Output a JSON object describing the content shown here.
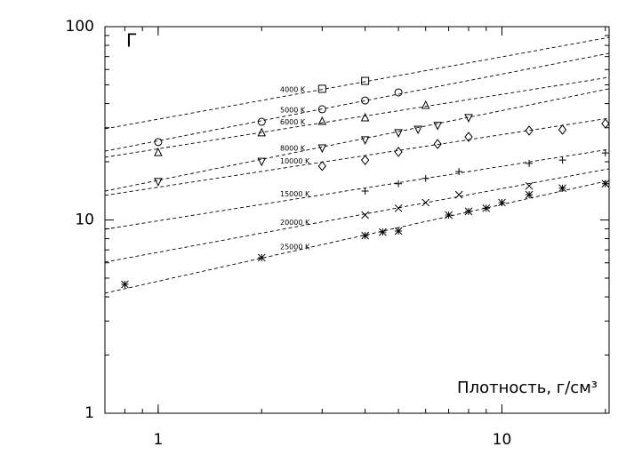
{
  "chart_data": {
    "type": "scatter",
    "x_label": "Плотность, г/см³",
    "y_label": "Г",
    "xlim": [
      0.7,
      20.5
    ],
    "ylim": [
      1,
      100
    ],
    "xticks": [
      1,
      10
    ],
    "yticks": [
      1,
      10,
      100
    ],
    "log_x": true,
    "log_y": true,
    "series": [
      {
        "name": "4000 K",
        "marker": "square",
        "color": "#000000",
        "x": [
          3,
          4
        ],
        "values": [
          47.7,
          52.4
        ],
        "fit": [
          29.6,
          88
        ]
      },
      {
        "name": "5000 K",
        "marker": "circle",
        "color": "#000000",
        "x": [
          1,
          2,
          3,
          4,
          5
        ],
        "values": [
          25.3,
          32.2,
          37.4,
          41.5,
          45.7
        ],
        "fit": [
          22.7,
          72.8
        ]
      },
      {
        "name": "6000 K",
        "marker": "triangle",
        "color": "#000000",
        "x": [
          1,
          2,
          3,
          4,
          6
        ],
        "values": [
          22.2,
          28.1,
          32.2,
          33.6,
          39
        ],
        "fit": [
          21.1,
          54.7
        ]
      },
      {
        "name": "8000 K",
        "marker": "nabla",
        "color": "#000000",
        "x": [
          1,
          2,
          3,
          4,
          5,
          5.7,
          6.5,
          8
        ],
        "values": [
          15.9,
          20.2,
          23.7,
          26.1,
          28.4,
          29.6,
          31,
          34
        ],
        "fit": [
          14.1,
          47.7
        ]
      },
      {
        "name": "10000 K",
        "marker": "diamond",
        "color": "#000000",
        "x": [
          3,
          4,
          5,
          6.5,
          8,
          12,
          15,
          20
        ],
        "values": [
          19,
          20.4,
          22.5,
          24.7,
          26.9,
          29,
          29.3,
          31.5
        ],
        "fit": [
          13.4,
          33.6
        ]
      },
      {
        "name": "15000 K",
        "marker": "plus",
        "color": "#000000",
        "x": [
          4,
          5,
          6,
          7.5,
          12,
          15,
          20
        ],
        "values": [
          14.1,
          15.4,
          16.4,
          17.8,
          19.6,
          20.4,
          22.2
        ],
        "fit": [
          8.95,
          23.2
        ]
      },
      {
        "name": "20000 K",
        "marker": "cross",
        "color": "#000000",
        "x": [
          4,
          5,
          6,
          7.5,
          12
        ],
        "values": [
          10.6,
          11.5,
          12.3,
          13.5,
          15
        ],
        "fit": [
          6.05,
          18.4
        ]
      },
      {
        "name": "25000 K",
        "marker": "asterisk",
        "color": "#000000",
        "x": [
          0.8,
          2,
          4,
          4.5,
          5,
          7,
          8,
          9,
          10,
          12,
          15,
          20
        ],
        "values": [
          4.64,
          6.38,
          8.3,
          8.66,
          8.76,
          10.6,
          11.07,
          11.5,
          12.3,
          13.5,
          14.6,
          15.4
        ],
        "fit": [
          4.18,
          16.0
        ]
      }
    ]
  }
}
